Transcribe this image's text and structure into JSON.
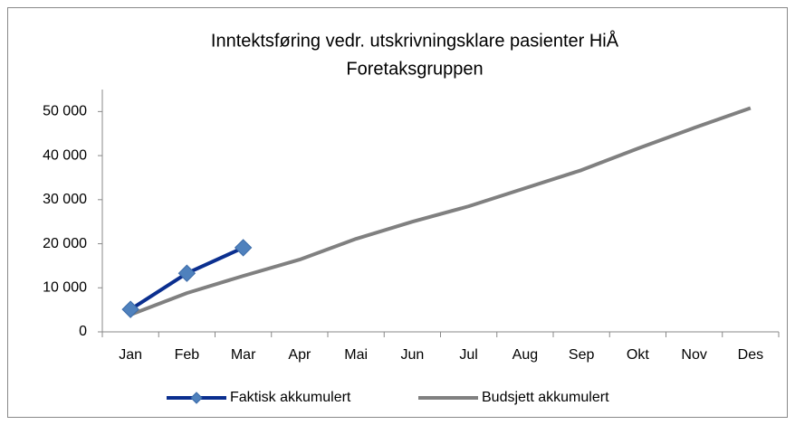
{
  "chart_data": {
    "type": "line",
    "title": [
      "Inntektsføring vedr. utskrivningsklare pasienter HiÅ",
      "Foretaksgruppen"
    ],
    "categories": [
      "Jan",
      "Feb",
      "Mar",
      "Apr",
      "Mai",
      "Jun",
      "Jul",
      "Aug",
      "Sep",
      "Okt",
      "Nov",
      "Des"
    ],
    "series": [
      {
        "name": "Faktisk akkumulert",
        "color": "#0b2f8f",
        "marker_color": "#4f81bd",
        "marker": "diamond",
        "values": [
          5100,
          13300,
          19100,
          null,
          null,
          null,
          null,
          null,
          null,
          null,
          null,
          null
        ]
      },
      {
        "name": "Budsjett akkumulert",
        "color": "#808080",
        "values": [
          3900,
          8800,
          12700,
          16400,
          21100,
          25000,
          28500,
          32600,
          36700,
          41600,
          46300,
          50800
        ]
      }
    ],
    "ylim": [
      0,
      55000
    ],
    "yticks": [
      0,
      {
        "value": 10000,
        "label": "10 000"
      },
      {
        "value": 20000,
        "label": "20 000"
      },
      {
        "value": 30000,
        "label": "30 000"
      },
      {
        "value": 40000,
        "label": "40 000"
      },
      {
        "value": 50000,
        "label": "50 000"
      }
    ],
    "grid": false,
    "legend": "bottom"
  }
}
